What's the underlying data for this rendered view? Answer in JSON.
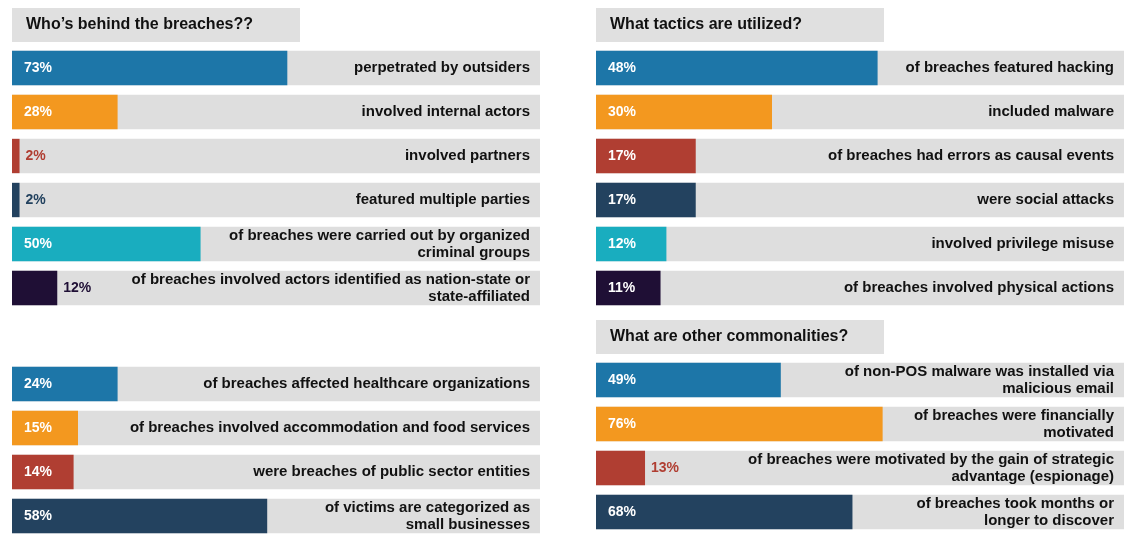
{
  "chart_data": [
    {
      "type": "bar",
      "orientation": "horizontal",
      "title": "Who’s behind the breaches??",
      "categories": [
        "perpetrated by outsiders",
        "involved internal actors",
        "involved partners",
        "featured multiple parties",
        "of breaches were carried out by organized criminal groups",
        "of breaches involved actors identified as nation-state or state-affiliated"
      ],
      "values": [
        73,
        28,
        2,
        2,
        50,
        12
      ],
      "value_labels": [
        "73%",
        "28%",
        "2%",
        "2%",
        "50%",
        "12%"
      ],
      "colors": [
        "#1d76a8",
        "#f3981f",
        "#b03e32",
        "#23425f",
        "#19adbf",
        "#1f0f35"
      ]
    },
    {
      "type": "bar",
      "orientation": "horizontal",
      "title": "What tactics are utilized?",
      "categories": [
        "of breaches featured hacking",
        "included malware",
        "of breaches had errors as causal events",
        "were social attacks",
        "involved privilege misuse",
        "of breaches involved physical actions"
      ],
      "values": [
        48,
        30,
        17,
        17,
        12,
        11
      ],
      "value_labels": [
        "48%",
        "30%",
        "17%",
        "17%",
        "12%",
        "11%"
      ],
      "colors": [
        "#1d76a8",
        "#f3981f",
        "#b03e32",
        "#23425f",
        "#19adbf",
        "#1f0f35"
      ]
    },
    {
      "type": "bar",
      "orientation": "horizontal",
      "categories": [
        "of breaches affected healthcare organizations",
        "of breaches involved accommodation and food services",
        "were breaches of public sector entities",
        "of victims are categorized as small businesses"
      ],
      "values": [
        24,
        15,
        14,
        58
      ],
      "value_labels": [
        "24%",
        "15%",
        "14%",
        "58%"
      ],
      "colors": [
        "#1d76a8",
        "#f3981f",
        "#b03e32",
        "#23425f"
      ]
    },
    {
      "type": "bar",
      "orientation": "horizontal",
      "title": "What are other commonalities?",
      "categories": [
        "of non-POS malware was installed via malicious email",
        "of breaches were financially motivated",
        "of breaches were motivated by the gain of strategic advantage (espionage)",
        "of breaches took months or longer to discover"
      ],
      "values": [
        49,
        76,
        13,
        68
      ],
      "value_labels": [
        "49%",
        "76%",
        "13%",
        "68%"
      ],
      "colors": [
        "#1d76a8",
        "#f3981f",
        "#b03e32",
        "#23425f"
      ]
    }
  ]
}
